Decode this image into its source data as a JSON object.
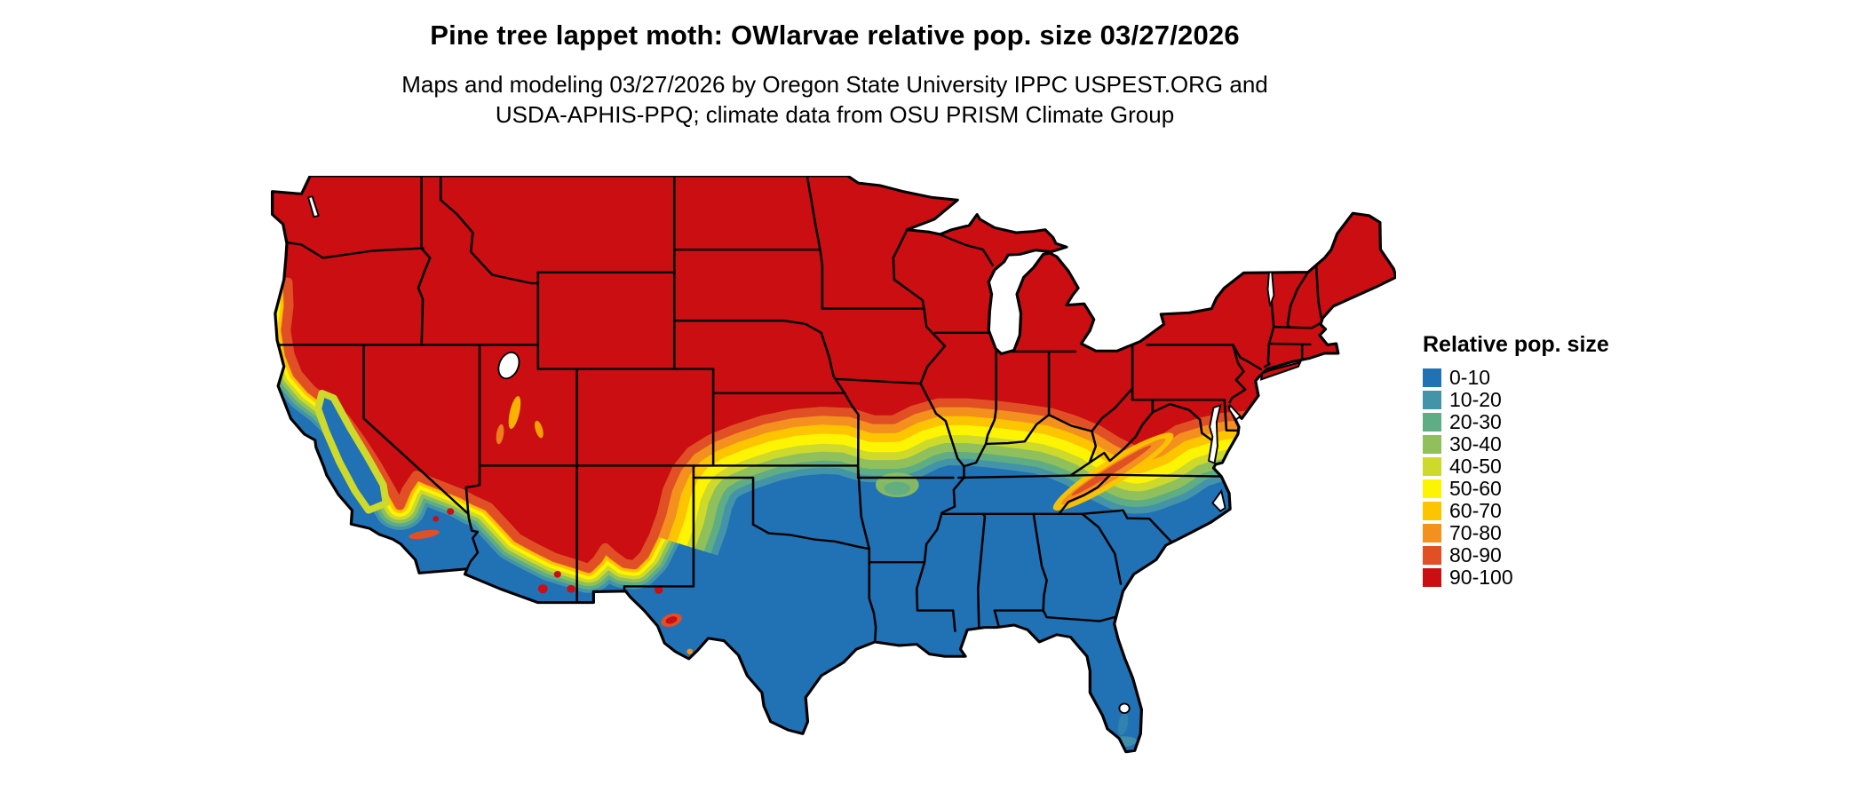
{
  "title": "Pine tree lappet moth: OWlarvae relative pop. size 03/27/2026",
  "subtitle": {
    "line1": "Maps and modeling 03/27/2026 by Oregon State University IPPC USPEST.ORG and",
    "line2": "USDA-APHIS-PPQ; climate data from OSU PRISM Climate Group"
  },
  "legend": {
    "title": "Relative pop. size",
    "entries": [
      {
        "label": "0-10",
        "color": "#2171b5"
      },
      {
        "label": "10-20",
        "color": "#4494a9"
      },
      {
        "label": "20-30",
        "color": "#5fad84"
      },
      {
        "label": "30-40",
        "color": "#8fc05c"
      },
      {
        "label": "40-50",
        "color": "#cdda2c"
      },
      {
        "label": "50-60",
        "color": "#fdf403"
      },
      {
        "label": "60-70",
        "color": "#fdc500"
      },
      {
        "label": "70-80",
        "color": "#f4901e"
      },
      {
        "label": "80-90",
        "color": "#e14f25"
      },
      {
        "label": "90-100",
        "color": "#ca0e12"
      }
    ]
  }
}
